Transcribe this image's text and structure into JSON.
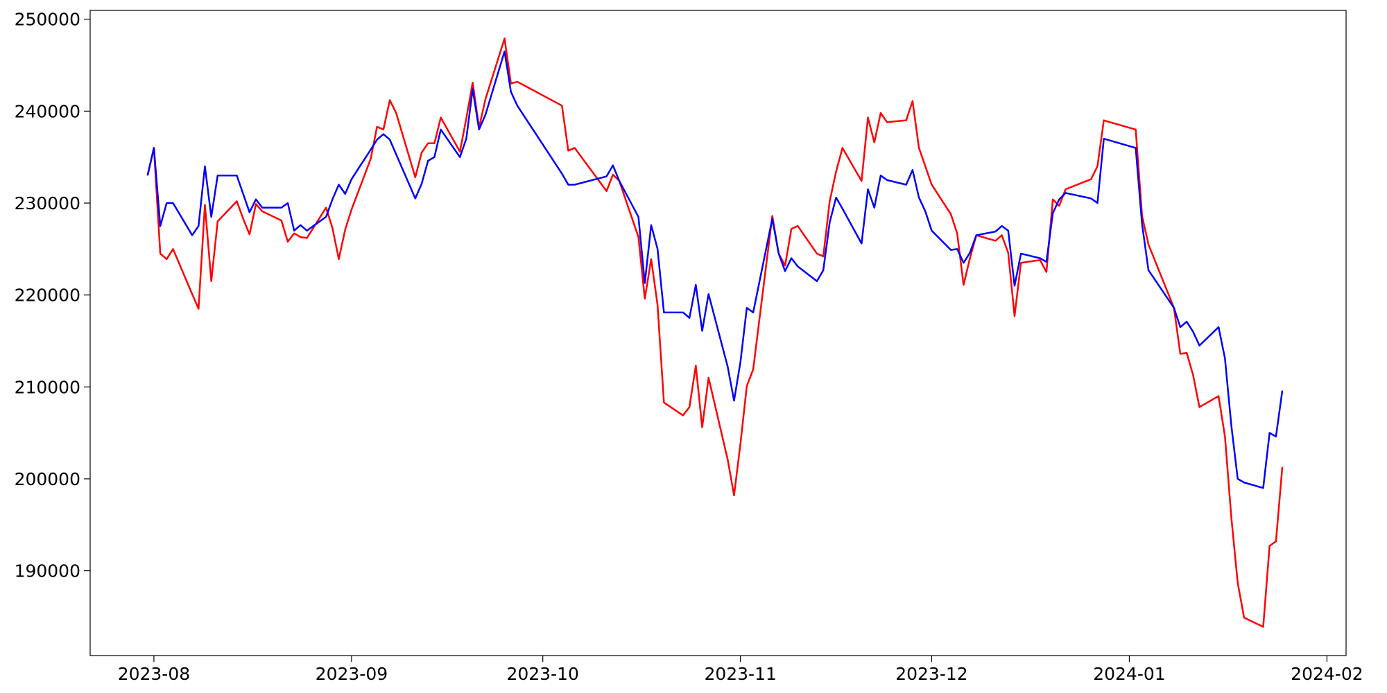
{
  "chart_data": {
    "type": "line",
    "x": [
      -1,
      0,
      1,
      2,
      3,
      6,
      7,
      8,
      9,
      10,
      13,
      14,
      15,
      16,
      17,
      20,
      21,
      22,
      23,
      24,
      27,
      28,
      29,
      30,
      31,
      34,
      35,
      36,
      37,
      38,
      41,
      42,
      43,
      44,
      45,
      48,
      49,
      50,
      51,
      52,
      55,
      56,
      57,
      64,
      65,
      66,
      71,
      72,
      73,
      76,
      77,
      78,
      79,
      80,
      83,
      84,
      85,
      86,
      87,
      90,
      91,
      92,
      93,
      94,
      97,
      98,
      99,
      100,
      101,
      104,
      105,
      106,
      107,
      108,
      111,
      112,
      113,
      114,
      115,
      118,
      119,
      120,
      121,
      122,
      125,
      126,
      127,
      128,
      129,
      132,
      133,
      134,
      135,
      136,
      139,
      140,
      141,
      142,
      143,
      147,
      148,
      149,
      154,
      155,
      156,
      160,
      161,
      162,
      163,
      164,
      167,
      168,
      169,
      170,
      171,
      174,
      175,
      176,
      177
    ],
    "series": [
      {
        "color": "red",
        "values": [
          233000,
          236000,
          224500,
          223900,
          225000,
          220100,
          218500,
          229800,
          221500,
          228000,
          230200,
          228300,
          226600,
          229900,
          229100,
          228100,
          225800,
          226700,
          226300,
          226200,
          229500,
          227300,
          223900,
          227100,
          229300,
          234800,
          238300,
          238000,
          241200,
          239800,
          232800,
          235500,
          236500,
          236500,
          239300,
          235600,
          239200,
          243100,
          238200,
          241300,
          247900,
          243000,
          243200,
          240600,
          235700,
          236000,
          231300,
          233100,
          232400,
          226300,
          219600,
          223900,
          218900,
          208300,
          206900,
          207800,
          212300,
          205600,
          211000,
          202100,
          198200,
          203800,
          210100,
          211900,
          228600,
          224500,
          223200,
          227200,
          227500,
          224500,
          224200,
          230200,
          233400,
          236000,
          232400,
          239300,
          236600,
          239800,
          238800,
          239000,
          241100,
          236000,
          234000,
          232000,
          228800,
          226700,
          221100,
          224000,
          226500,
          225900,
          226500,
          224600,
          217700,
          223500,
          223800,
          222500,
          230400,
          229700,
          231500,
          232600,
          234000,
          239000,
          238000,
          228600,
          225500,
          218600,
          213600,
          213700,
          211300,
          207800,
          209000,
          204600,
          195800,
          188700,
          184900,
          183900,
          192700,
          193200,
          201300
        ]
      },
      {
        "color": "blue",
        "values": [
          233000,
          236000,
          227500,
          230000,
          230000,
          226500,
          227500,
          234000,
          228500,
          233000,
          233000,
          231000,
          229000,
          230400,
          229500,
          229500,
          230000,
          227000,
          227600,
          227000,
          228500,
          230400,
          232000,
          231000,
          232600,
          235800,
          236900,
          237500,
          236900,
          235300,
          230500,
          232100,
          234600,
          235000,
          238000,
          235000,
          237000,
          242400,
          238000,
          239600,
          246500,
          242100,
          240600,
          233200,
          232000,
          232000,
          232900,
          234100,
          232400,
          228500,
          221300,
          227600,
          225000,
          218100,
          218100,
          217500,
          221100,
          216100,
          220100,
          212200,
          208500,
          212700,
          218600,
          218100,
          228300,
          224500,
          222600,
          224000,
          223100,
          221500,
          222700,
          227900,
          230600,
          229400,
          225600,
          231500,
          229500,
          233000,
          232500,
          232000,
          233600,
          230600,
          229100,
          227000,
          224900,
          225000,
          223500,
          224600,
          226500,
          226900,
          227500,
          227000,
          221000,
          224500,
          224000,
          223600,
          228900,
          230400,
          231100,
          230500,
          230000,
          237000,
          236000,
          227700,
          222700,
          218600,
          216500,
          217100,
          216000,
          214500,
          216500,
          213100,
          205800,
          200000,
          199600,
          199000,
          205000,
          204600,
          209600
        ]
      }
    ],
    "xlim": [
      -10,
      187
    ],
    "xticks": [
      {
        "value": 0,
        "label": "2023-08"
      },
      {
        "value": 31,
        "label": "2023-09"
      },
      {
        "value": 61,
        "label": "2023-10"
      },
      {
        "value": 92,
        "label": "2023-11"
      },
      {
        "value": 122,
        "label": "2023-12"
      },
      {
        "value": 153,
        "label": "2024-01"
      },
      {
        "value": 184,
        "label": "2024-02"
      }
    ],
    "ylim": [
      180770,
      250960
    ],
    "yticks": [
      190000,
      200000,
      210000,
      220000,
      230000,
      240000,
      250000
    ]
  }
}
